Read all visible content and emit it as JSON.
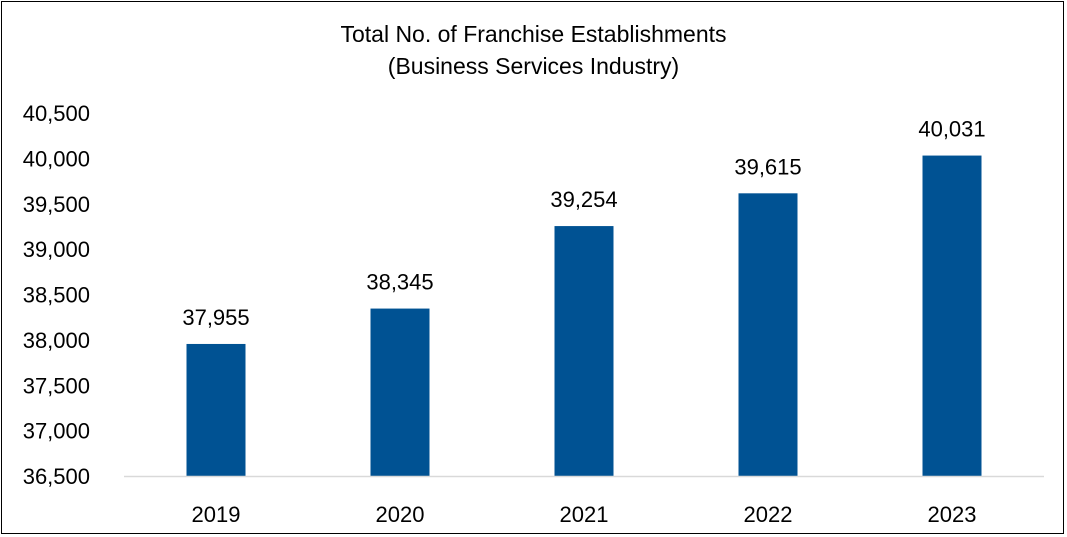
{
  "chart_data": {
    "type": "bar",
    "title_lines": [
      "Total No. of Franchise Establishments",
      "(Business Services Industry)"
    ],
    "xlabel": "",
    "ylabel": "",
    "categories": [
      "2019",
      "2020",
      "2021",
      "2022",
      "2023"
    ],
    "values": [
      37955,
      38345,
      39254,
      39615,
      40031
    ],
    "data_labels": [
      "37,955",
      "38,345",
      "39,254",
      "39,615",
      "40,031"
    ],
    "ylim": [
      36500,
      40500
    ],
    "y_ticks": [
      36500,
      37000,
      37500,
      38000,
      38500,
      39000,
      39500,
      40000,
      40500
    ],
    "y_tick_labels": [
      "36,500",
      "37,000",
      "37,500",
      "38,000",
      "38,500",
      "39,000",
      "39,500",
      "40,000",
      "40,500"
    ],
    "grid": false,
    "legend": "none",
    "colors": {
      "bar": "#005293",
      "axis": "#d9d9d9",
      "text": "#000000",
      "border": "#000000"
    }
  }
}
